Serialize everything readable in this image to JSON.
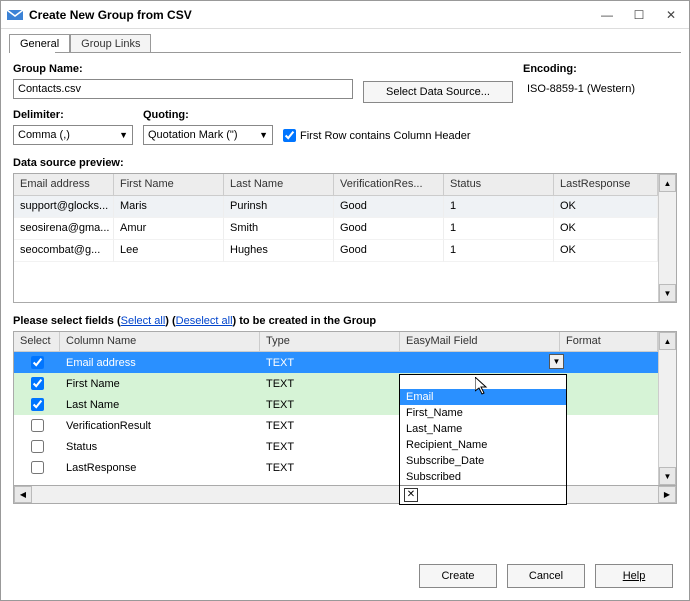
{
  "window": {
    "title": "Create New Group from CSV"
  },
  "tabs": {
    "general": "General",
    "group_links": "Group Links"
  },
  "labels": {
    "group_name": "Group Name:",
    "encoding": "Encoding:",
    "delimiter": "Delimiter:",
    "quoting": "Quoting:",
    "first_row_header": "First Row contains Column Header",
    "preview": "Data source preview:",
    "select_fields_pre": "Please select fields (",
    "select_all": "Select all",
    "select_fields_mid": ") (",
    "deselect_all": "Deselect all",
    "select_fields_post": ") to be created in the Group"
  },
  "values": {
    "group_name": "Contacts.csv",
    "encoding": "ISO-8859-1 (Western)",
    "delimiter": "Comma (,)",
    "quoting": "Quotation Mark (\")",
    "first_row_checked": true,
    "select_data_source": "Select Data Source..."
  },
  "preview": {
    "columns": [
      "Email address",
      "First Name",
      "Last Name",
      "VerificationRes...",
      "Status",
      "LastResponse"
    ],
    "rows": [
      [
        "support@glocks...",
        "Maris",
        "Purinsh",
        "Good",
        "1",
        "OK"
      ],
      [
        "seosirena@gma...",
        "Amur",
        "Smith",
        "Good",
        "1",
        "OK"
      ],
      [
        "seocombat@g...",
        "Lee",
        "Hughes",
        "Good",
        "1",
        "OK"
      ]
    ]
  },
  "fields": {
    "columns": [
      "Select",
      "Column Name",
      "Type",
      "EasyMail Field",
      "Format"
    ],
    "rows": [
      {
        "checked": true,
        "selected": true,
        "name": "Email address",
        "type": "TEXT"
      },
      {
        "checked": true,
        "selected": false,
        "name": "First Name",
        "type": "TEXT"
      },
      {
        "checked": true,
        "selected": false,
        "name": "Last Name",
        "type": "TEXT"
      },
      {
        "checked": false,
        "selected": false,
        "name": "VerificationResult",
        "type": "TEXT"
      },
      {
        "checked": false,
        "selected": false,
        "name": "Status",
        "type": "TEXT"
      },
      {
        "checked": false,
        "selected": false,
        "name": "LastResponse",
        "type": "TEXT"
      }
    ]
  },
  "dropdown": {
    "options": [
      "Email",
      "First_Name",
      "Last_Name",
      "Recipient_Name",
      "Subscribe_Date",
      "Subscribed"
    ],
    "highlighted": 0
  },
  "buttons": {
    "create": "Create",
    "cancel": "Cancel",
    "help": "Help"
  },
  "colors": {
    "selected_row": "#2a90ff",
    "checked_row": "#d6f3d6",
    "header_bg": "#ededed",
    "link": "#0044cc"
  }
}
